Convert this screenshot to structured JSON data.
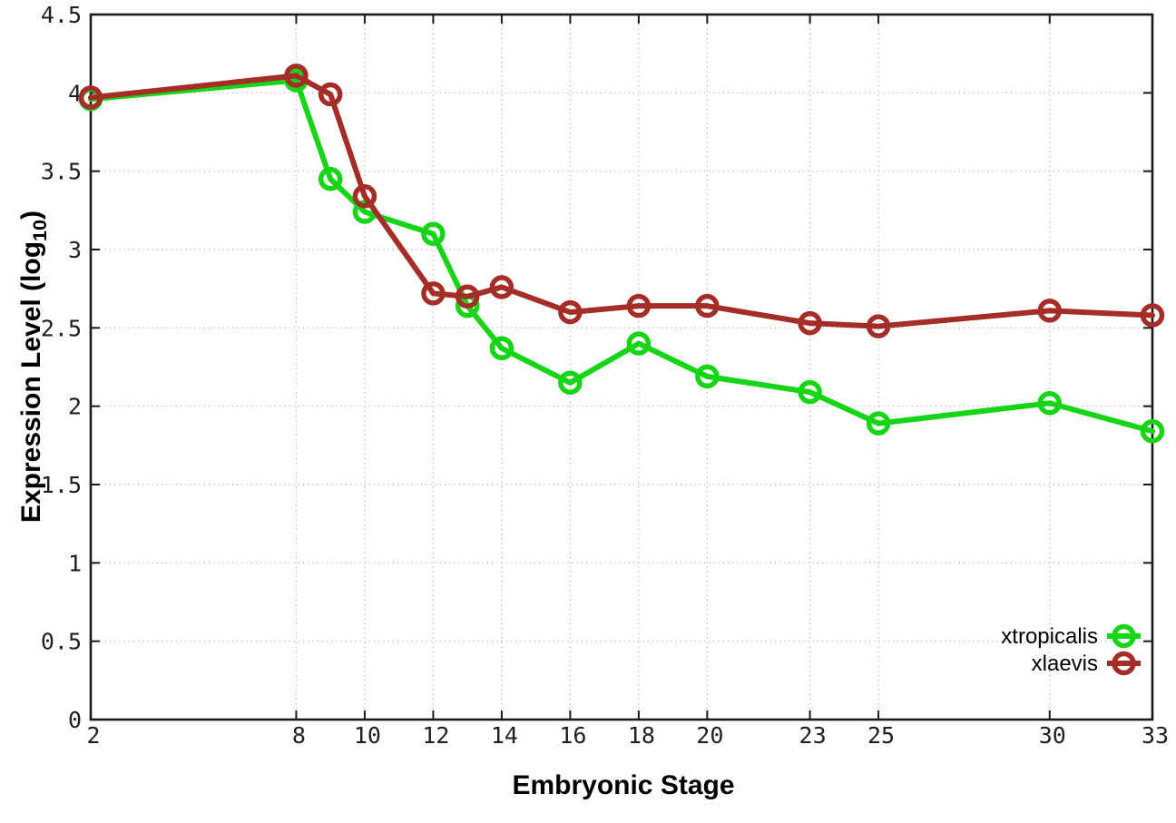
{
  "chart_data": {
    "type": "line",
    "title": "",
    "xlabel": "Embryonic Stage",
    "ylabel": "Expression Level (log10)",
    "ylabel_rich": {
      "prefix": "Expression Level (log",
      "subscript": "10",
      "suffix": ")"
    },
    "xlim": [
      2,
      33
    ],
    "ylim": [
      0,
      4.5
    ],
    "grid": "dotted",
    "legend_position": "inside-bottom-right",
    "x_tick_values": [
      2,
      8,
      10,
      12,
      14,
      16,
      18,
      20,
      23,
      25,
      30,
      33
    ],
    "x_tick_labels": [
      "2",
      "8",
      "10",
      "12",
      "14",
      "16",
      "18",
      "20",
      "23",
      "25",
      "30",
      "33"
    ],
    "y_tick_values": [
      0,
      0.5,
      1,
      1.5,
      2,
      2.5,
      3,
      3.5,
      4,
      4.5
    ],
    "y_tick_labels": [
      "0",
      "0.5",
      "1",
      "1.5",
      "2",
      "2.5",
      "3",
      "3.5",
      "4",
      "4.5"
    ],
    "x": [
      2,
      8,
      9,
      10,
      12,
      13,
      14,
      16,
      18,
      20,
      23,
      25,
      30,
      33
    ],
    "series": [
      {
        "name": "xtropicalis",
        "color": "#16d416",
        "marker": "open-circle",
        "values": [
          3.96,
          4.08,
          3.45,
          3.24,
          3.1,
          2.64,
          2.37,
          2.15,
          2.4,
          2.19,
          2.09,
          1.89,
          2.02,
          1.84
        ]
      },
      {
        "name": "xlaevis",
        "color": "#a52d27",
        "marker": "open-circle",
        "values": [
          3.97,
          4.11,
          3.99,
          3.34,
          2.72,
          2.7,
          2.76,
          2.6,
          2.64,
          2.64,
          2.53,
          2.51,
          2.61,
          2.58
        ]
      }
    ],
    "colors": {
      "axis": "#1a1a1a",
      "grid": "#ababab",
      "tick_text": "#1f1f1f"
    }
  }
}
